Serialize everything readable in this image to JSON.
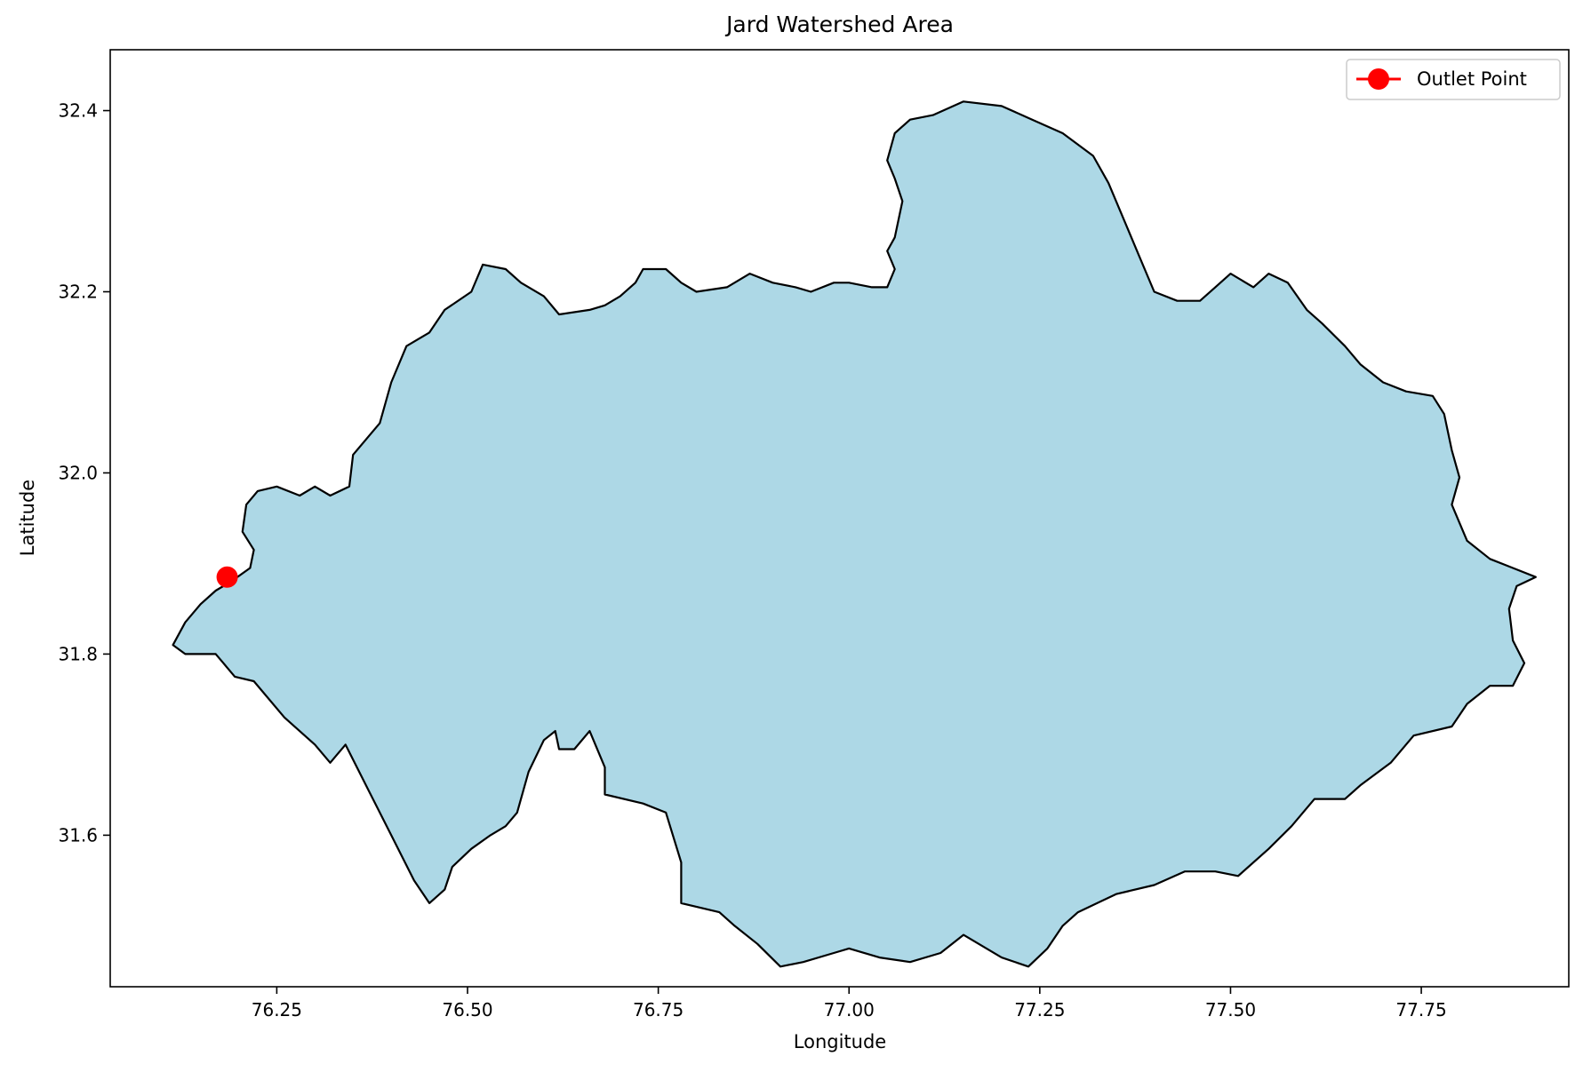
{
  "chart_data": {
    "type": "map",
    "title": "Jard Watershed Area",
    "xlabel": "Longitude",
    "ylabel": "Latitude",
    "xlim": [
      76.031,
      76.943
    ],
    "ylim": [
      31.395,
      32.465
    ],
    "xticks": [
      76.25,
      76.5,
      76.75,
      77.0,
      77.25,
      77.5,
      77.75
    ],
    "xtick_labels": [
      "76.25",
      "76.50",
      "76.75",
      "77.00",
      "77.25",
      "77.50",
      "77.75"
    ],
    "yticks": [
      31.6,
      31.8,
      32.0,
      32.2,
      32.4
    ],
    "ytick_labels": [
      "31.6",
      "31.8",
      "32.0",
      "32.2",
      "32.4"
    ],
    "grid": false,
    "legend_position": "top-right",
    "polygon": {
      "fill": "#add8e6",
      "edge": "#000000",
      "points": [
        [
          76.114,
          31.81
        ],
        [
          76.13,
          31.8
        ],
        [
          76.17,
          31.8
        ],
        [
          76.18,
          31.79
        ],
        [
          76.195,
          31.775
        ],
        [
          76.22,
          31.77
        ],
        [
          76.26,
          31.73
        ],
        [
          76.3,
          31.7
        ],
        [
          76.32,
          31.68
        ],
        [
          76.34,
          31.7
        ],
        [
          76.37,
          31.65
        ],
        [
          76.4,
          31.6
        ],
        [
          76.43,
          31.55
        ],
        [
          76.45,
          31.525
        ],
        [
          76.47,
          31.54
        ],
        [
          76.48,
          31.565
        ],
        [
          76.505,
          31.585
        ],
        [
          76.53,
          31.6
        ],
        [
          76.55,
          31.61
        ],
        [
          76.565,
          31.625
        ],
        [
          76.58,
          31.67
        ],
        [
          76.6,
          31.705
        ],
        [
          76.615,
          31.715
        ],
        [
          76.62,
          31.695
        ],
        [
          76.64,
          31.695
        ],
        [
          76.66,
          31.715
        ],
        [
          76.68,
          31.675
        ],
        [
          76.68,
          31.645
        ],
        [
          76.73,
          31.635
        ],
        [
          76.76,
          31.625
        ],
        [
          76.78,
          31.57
        ],
        [
          76.78,
          31.525
        ],
        [
          76.83,
          31.515
        ],
        [
          76.85,
          31.5
        ],
        [
          76.88,
          31.48
        ],
        [
          76.91,
          31.455
        ],
        [
          76.94,
          31.46
        ],
        [
          76.98,
          31.47
        ],
        [
          77.0,
          31.475
        ],
        [
          77.04,
          31.465
        ],
        [
          77.08,
          31.46
        ],
        [
          77.12,
          31.47
        ],
        [
          77.15,
          31.49
        ],
        [
          77.2,
          31.465
        ],
        [
          77.235,
          31.455
        ],
        [
          77.26,
          31.475
        ],
        [
          77.28,
          31.5
        ],
        [
          77.3,
          31.515
        ],
        [
          77.35,
          31.535
        ],
        [
          77.4,
          31.545
        ],
        [
          77.44,
          31.56
        ],
        [
          77.48,
          31.56
        ],
        [
          77.51,
          31.555
        ],
        [
          77.55,
          31.585
        ],
        [
          77.58,
          31.61
        ],
        [
          77.61,
          31.64
        ],
        [
          77.65,
          31.64
        ],
        [
          77.67,
          31.655
        ],
        [
          77.71,
          31.68
        ],
        [
          77.74,
          31.71
        ],
        [
          77.79,
          31.72
        ],
        [
          77.81,
          31.745
        ],
        [
          77.84,
          31.765
        ],
        [
          77.87,
          31.765
        ],
        [
          77.885,
          31.79
        ],
        [
          77.87,
          31.815
        ],
        [
          77.865,
          31.85
        ],
        [
          77.875,
          31.875
        ],
        [
          77.9,
          31.885
        ],
        [
          77.87,
          31.895
        ],
        [
          77.84,
          31.905
        ],
        [
          77.81,
          31.925
        ],
        [
          77.79,
          31.965
        ],
        [
          77.8,
          31.995
        ],
        [
          77.79,
          32.025
        ],
        [
          77.78,
          32.065
        ],
        [
          77.765,
          32.085
        ],
        [
          77.73,
          32.09
        ],
        [
          77.7,
          32.1
        ],
        [
          77.67,
          32.12
        ],
        [
          77.65,
          32.14
        ],
        [
          77.62,
          32.165
        ],
        [
          77.6,
          32.18
        ],
        [
          77.575,
          32.21
        ],
        [
          77.55,
          32.22
        ],
        [
          77.53,
          32.205
        ],
        [
          77.5,
          32.22
        ],
        [
          77.48,
          32.205
        ],
        [
          77.46,
          32.19
        ],
        [
          77.43,
          32.19
        ],
        [
          77.4,
          32.2
        ],
        [
          77.38,
          32.24
        ],
        [
          77.36,
          32.28
        ],
        [
          77.34,
          32.32
        ],
        [
          77.32,
          32.35
        ],
        [
          77.28,
          32.375
        ],
        [
          77.24,
          32.39
        ],
        [
          77.2,
          32.405
        ],
        [
          77.15,
          32.41
        ],
        [
          77.11,
          32.395
        ],
        [
          77.08,
          32.39
        ],
        [
          77.06,
          32.375
        ],
        [
          77.05,
          32.345
        ],
        [
          77.06,
          32.325
        ],
        [
          77.07,
          32.3
        ],
        [
          77.06,
          32.26
        ],
        [
          77.05,
          32.245
        ],
        [
          77.06,
          32.225
        ],
        [
          77.05,
          32.205
        ],
        [
          77.03,
          32.205
        ],
        [
          77.0,
          32.21
        ],
        [
          76.98,
          32.21
        ],
        [
          76.95,
          32.2
        ],
        [
          76.93,
          32.205
        ],
        [
          76.9,
          32.21
        ],
        [
          76.87,
          32.22
        ],
        [
          76.84,
          32.205
        ],
        [
          76.8,
          32.2
        ],
        [
          76.78,
          32.21
        ],
        [
          76.76,
          32.225
        ],
        [
          76.73,
          32.225
        ],
        [
          76.72,
          32.21
        ],
        [
          76.7,
          32.195
        ],
        [
          76.68,
          32.185
        ],
        [
          76.66,
          32.18
        ],
        [
          76.62,
          32.175
        ],
        [
          76.6,
          32.195
        ],
        [
          76.57,
          32.21
        ],
        [
          76.55,
          32.225
        ],
        [
          76.52,
          32.23
        ],
        [
          76.505,
          32.2
        ],
        [
          76.47,
          32.18
        ],
        [
          76.45,
          32.155
        ],
        [
          76.42,
          32.14
        ],
        [
          76.4,
          32.1
        ],
        [
          76.385,
          32.055
        ],
        [
          76.37,
          32.04
        ],
        [
          76.35,
          32.02
        ],
        [
          76.345,
          31.985
        ],
        [
          76.32,
          31.975
        ],
        [
          76.3,
          31.985
        ],
        [
          76.28,
          31.975
        ],
        [
          76.25,
          31.985
        ],
        [
          76.225,
          31.98
        ],
        [
          76.21,
          31.965
        ],
        [
          76.205,
          31.935
        ],
        [
          76.22,
          31.915
        ],
        [
          76.215,
          31.895
        ],
        [
          76.19,
          31.88
        ],
        [
          76.17,
          31.87
        ],
        [
          76.15,
          31.855
        ],
        [
          76.13,
          31.835
        ]
      ]
    },
    "series": [
      {
        "name": "Outlet Point",
        "x": [
          76.185
        ],
        "y": [
          31.885
        ],
        "color": "#ff0000",
        "marker": "circle"
      }
    ]
  }
}
